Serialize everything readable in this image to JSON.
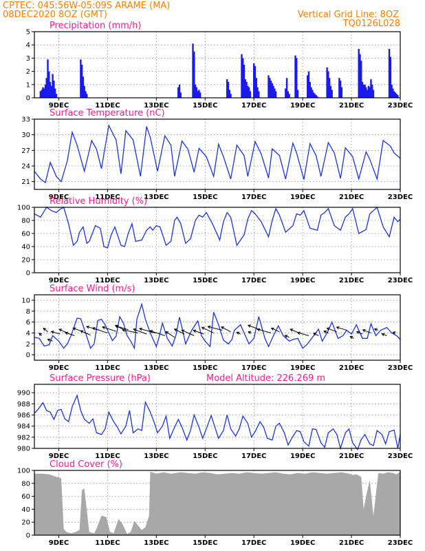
{
  "header": {
    "line1_left": "CPTEC:   045:56W-05:09S   ARAME (MA)",
    "line2_left": "08DEC2020 8OZ (GMT)",
    "line1_right": "Vertical Grid Line: 8OZ",
    "line2_right": "TQ0126L028"
  },
  "colors": {
    "header": "#ff7f00",
    "title": "#ff1a8c",
    "series": "#1a33dd",
    "bars": "#1a1aee",
    "cloud": "#a8a8a8"
  },
  "x_axis": {
    "range": [
      0,
      15
    ],
    "unit": "days since 08DEC2020 08Z",
    "tick_positions": [
      1,
      3,
      5,
      7,
      9,
      11,
      13,
      15
    ],
    "tick_labels": [
      "9DEC",
      "11DEC",
      "13DEC",
      "15DEC",
      "17DEC",
      "19DEC",
      "21DEC",
      "23DEC"
    ]
  },
  "chart_data": [
    {
      "id": "precip",
      "type": "bar",
      "title": "Precipitation (mm/h)",
      "ylim": [
        0,
        5
      ],
      "yticks": [
        0,
        1,
        2,
        3,
        4,
        5
      ],
      "x": [
        0.25,
        0.3,
        0.35,
        0.4,
        0.45,
        0.5,
        0.55,
        0.6,
        0.65,
        0.7,
        0.75,
        0.8,
        0.85,
        0.9,
        1.9,
        1.95,
        2.0,
        2.05,
        2.1,
        2.15,
        5.9,
        5.95,
        6.0,
        6.5,
        6.55,
        6.6,
        6.65,
        6.7,
        6.75,
        6.8,
        7.9,
        7.95,
        8.0,
        8.05,
        8.5,
        8.55,
        8.6,
        8.65,
        8.7,
        8.75,
        8.8,
        8.85,
        9.0,
        9.05,
        9.1,
        9.15,
        9.2,
        9.6,
        9.65,
        9.7,
        9.75,
        9.8,
        9.85,
        9.9,
        10.3,
        10.35,
        10.4,
        10.45,
        10.7,
        10.75,
        10.8,
        11.2,
        11.25,
        11.3,
        11.35,
        11.4,
        11.45,
        11.5,
        11.55,
        11.6,
        12.0,
        12.05,
        12.1,
        12.15,
        12.2,
        12.5,
        12.55,
        12.6,
        13.3,
        13.35,
        13.4,
        13.45,
        13.5,
        13.55,
        13.6,
        13.65,
        13.7,
        13.75,
        13.8,
        13.85,
        13.9,
        14.55,
        14.6,
        14.65,
        14.7,
        14.75,
        14.8,
        14.85,
        14.9
      ],
      "values": [
        0.5,
        0.6,
        0.8,
        0.7,
        1.0,
        1.5,
        2.9,
        2.0,
        1.2,
        0.9,
        1.8,
        1.3,
        0.7,
        0.3,
        2.9,
        2.5,
        1.6,
        0.9,
        0.5,
        0.3,
        0.8,
        1.0,
        0.4,
        4.1,
        3.5,
        1.0,
        0.8,
        0.5,
        0.6,
        0.4,
        1.4,
        1.2,
        0.6,
        0.3,
        3.3,
        3.0,
        2.5,
        1.4,
        1.2,
        0.9,
        0.8,
        0.5,
        2.6,
        2.4,
        1.5,
        0.8,
        0.5,
        1.7,
        1.5,
        1.3,
        1.1,
        0.9,
        0.7,
        0.5,
        0.7,
        1.5,
        0.5,
        0.3,
        3.2,
        3.0,
        0.6,
        1.7,
        2.0,
        1.2,
        0.8,
        0.6,
        0.4,
        0.3,
        0.2,
        0.1,
        2.3,
        2.0,
        1.5,
        0.9,
        0.6,
        1.5,
        1.3,
        0.8,
        3.7,
        3.3,
        2.8,
        1.2,
        1.0,
        1.0,
        0.8,
        0.6,
        0.9,
        0.8,
        1.4,
        1.0,
        0.6,
        3.7,
        3.1,
        1.0,
        0.7,
        0.5,
        0.4,
        0.3,
        0.2
      ]
    },
    {
      "id": "temp",
      "type": "line",
      "title": "Surface Temperature (nC)",
      "ylim": [
        19.5,
        33
      ],
      "yticks": [
        21,
        24,
        27,
        30,
        33
      ],
      "x": [
        0,
        0.25,
        0.45,
        0.65,
        0.9,
        1.1,
        1.35,
        1.55,
        1.75,
        2.05,
        2.35,
        2.55,
        2.75,
        3.05,
        3.35,
        3.55,
        3.75,
        4.05,
        4.35,
        4.6,
        4.75,
        5.05,
        5.35,
        5.6,
        5.75,
        6.05,
        6.3,
        6.55,
        6.75,
        7.05,
        7.35,
        7.55,
        7.75,
        8.05,
        8.3,
        8.6,
        8.75,
        9.05,
        9.3,
        9.6,
        9.75,
        10.05,
        10.3,
        10.6,
        10.75,
        11.05,
        11.3,
        11.55,
        11.75,
        12.05,
        12.3,
        12.55,
        12.75,
        13.05,
        13.3,
        13.6,
        13.75,
        14.05,
        14.3,
        14.6,
        14.75,
        15
      ],
      "values": [
        23.0,
        21.5,
        20.8,
        24.7,
        22.0,
        21.0,
        25.0,
        30.5,
        28.0,
        23.0,
        28.9,
        27.2,
        23.5,
        31.8,
        29.0,
        22.5,
        30.8,
        29.0,
        22.0,
        31.6,
        29.5,
        23.0,
        29.8,
        28.0,
        22.0,
        28.8,
        27.2,
        22.8,
        27.4,
        25.8,
        22.0,
        28.2,
        25.8,
        21.5,
        28.0,
        26.0,
        22.0,
        28.7,
        26.3,
        21.7,
        27.3,
        26.0,
        21.5,
        28.4,
        26.5,
        21.4,
        28.3,
        26.0,
        22.0,
        28.5,
        26.5,
        21.6,
        27.5,
        25.8,
        21.5,
        26.7,
        25.3,
        21.5,
        28.9,
        27.8,
        26.5,
        25.5
      ]
    },
    {
      "id": "rh",
      "type": "line",
      "title": "Relative Humidity (%)",
      "ylim": [
        0,
        100
      ],
      "yticks": [
        0,
        20,
        40,
        60,
        80,
        100
      ],
      "x": [
        0,
        0.25,
        0.5,
        0.7,
        0.9,
        1.05,
        1.2,
        1.4,
        1.6,
        1.75,
        1.85,
        2.0,
        2.15,
        2.25,
        2.5,
        2.7,
        2.85,
        3.0,
        3.15,
        3.3,
        3.55,
        3.7,
        3.85,
        4.0,
        4.15,
        4.4,
        4.6,
        4.75,
        4.85,
        5.0,
        5.15,
        5.4,
        5.6,
        5.75,
        5.85,
        6.0,
        6.2,
        6.4,
        6.6,
        6.75,
        6.9,
        7.05,
        7.3,
        7.6,
        7.75,
        7.9,
        8.05,
        8.3,
        8.6,
        8.75,
        8.9,
        9.05,
        9.3,
        9.6,
        9.75,
        9.9,
        10.05,
        10.3,
        10.6,
        10.75,
        10.9,
        11.05,
        11.3,
        11.6,
        11.75,
        11.9,
        12.05,
        12.3,
        12.55,
        12.75,
        12.9,
        13.05,
        13.3,
        13.6,
        13.75,
        13.9,
        14.05,
        14.3,
        14.55,
        14.75,
        14.9,
        15
      ],
      "values": [
        90,
        85,
        100,
        95,
        92,
        97,
        100,
        75,
        42,
        48,
        62,
        70,
        45,
        48,
        72,
        68,
        40,
        38,
        58,
        70,
        42,
        40,
        60,
        75,
        48,
        50,
        65,
        70,
        65,
        72,
        70,
        42,
        48,
        80,
        85,
        75,
        45,
        52,
        80,
        88,
        85,
        92,
        75,
        50,
        78,
        92,
        85,
        42,
        58,
        82,
        95,
        90,
        78,
        55,
        80,
        98,
        88,
        62,
        72,
        90,
        88,
        95,
        68,
        65,
        88,
        92,
        98,
        72,
        65,
        85,
        90,
        98,
        60,
        66,
        90,
        95,
        100,
        70,
        55,
        85,
        78,
        82
      ]
    },
    {
      "id": "wind",
      "type": "line",
      "title": "Surface Wind (m/s)",
      "ylim": [
        -1,
        11
      ],
      "yticks": [
        0,
        2,
        4,
        6,
        8,
        10
      ],
      "x": [
        0,
        0.2,
        0.4,
        0.6,
        0.75,
        1.0,
        1.2,
        1.35,
        1.5,
        1.75,
        1.9,
        2.1,
        2.3,
        2.45,
        2.6,
        2.75,
        2.9,
        3.0,
        3.2,
        3.35,
        3.5,
        3.65,
        3.8,
        3.95,
        4.1,
        4.2,
        4.4,
        4.55,
        4.75,
        4.9,
        5.0,
        5.1,
        5.25,
        5.45,
        5.65,
        5.8,
        5.95,
        6.05,
        6.2,
        6.45,
        6.7,
        6.85,
        7.0,
        7.2,
        7.35,
        7.55,
        7.75,
        7.95,
        8.1,
        8.2,
        8.45,
        8.65,
        8.8,
        9.0,
        9.2,
        9.45,
        9.6,
        9.8,
        10.0,
        10.2,
        10.45,
        10.6,
        10.8,
        11.0,
        11.2,
        11.45,
        11.65,
        11.8,
        12.0,
        12.2,
        12.45,
        12.65,
        12.8,
        13.0,
        13.2,
        13.45,
        13.65,
        13.8,
        14.0,
        14.2,
        14.45,
        14.65,
        14.85,
        15
      ],
      "values": [
        3.2,
        3.0,
        1.6,
        1.8,
        3.5,
        2.5,
        1.2,
        2.0,
        3.5,
        6.7,
        6.6,
        4.0,
        1.2,
        2.0,
        6.3,
        6.5,
        5.5,
        4.5,
        2.6,
        3.4,
        7.0,
        5.8,
        3.5,
        2.5,
        1.2,
        6.5,
        9.3,
        6.5,
        4.0,
        2.5,
        1.5,
        3.0,
        5.8,
        3.0,
        1.6,
        3.5,
        6.9,
        5.0,
        2.0,
        4.5,
        6.2,
        3.5,
        2.5,
        1.5,
        7.8,
        5.5,
        2.7,
        2.0,
        2.8,
        4.5,
        5.5,
        3.5,
        2.0,
        3.0,
        7.0,
        3.0,
        1.5,
        3.5,
        5.3,
        3.5,
        2.5,
        2.8,
        3.0,
        1.2,
        2.0,
        3.5,
        4.7,
        2.5,
        4.0,
        6.0,
        3.0,
        3.5,
        4.5,
        3.8,
        5.5,
        3.0,
        3.0,
        5.7,
        3.5,
        4.5,
        5.0,
        4.0,
        3.5,
        2.8
      ],
      "arrows_x": [
        0.3,
        0.55,
        0.75,
        1.05,
        1.35,
        1.65,
        2.0,
        2.3,
        2.65,
        3.0,
        3.35,
        3.7,
        3.85,
        4.25,
        4.6,
        4.95,
        5.35,
        5.75,
        6.15,
        6.55,
        6.95,
        7.35,
        7.7,
        8.05,
        8.45,
        8.9,
        9.3,
        9.7,
        10.05,
        10.45,
        10.85,
        11.25,
        11.65,
        12.05,
        12.4,
        12.8,
        13.1,
        13.45,
        13.8,
        14.1,
        14.45,
        14.8
      ],
      "arrows_y": [
        3.5,
        4.2,
        2.5,
        3.8,
        4.0,
        3.5,
        4.2,
        3.6,
        4.5,
        4.0,
        4.3,
        4.5,
        4.6,
        4.0,
        3.8,
        4.0,
        3.5,
        3.2,
        3.8,
        3.5,
        3.8,
        4.0,
        4.5,
        4.2,
        3.8,
        4.0,
        4.5,
        4.0,
        4.2,
        3.2,
        4.0,
        3.5,
        3.5,
        4.0,
        4.2,
        4.5,
        3.0,
        3.8,
        4.0,
        4.5,
        3.5,
        4.0
      ],
      "arrows_u": [
        -0.4,
        -0.7,
        -0.8,
        -1.4,
        -1.3,
        -1.5,
        -1.6,
        -1.6,
        -2.0,
        -2.4,
        -2.2,
        -1.5,
        -2.0,
        -2.5,
        -2.1,
        -2.5,
        -2.4,
        -1.4,
        -1.6,
        -2.0,
        -1.7,
        -1.9,
        -2.3,
        -1.5,
        -0.6,
        -0.5,
        -2.1,
        -2.2,
        -1.3,
        -0.7,
        -1.4,
        -1.8,
        -0.8,
        -0.7,
        -1.6,
        -1.6,
        -0.6,
        -0.9,
        -1.3,
        -0.6,
        -0.8,
        -0.4
      ],
      "arrows_v": [
        0.4,
        0.6,
        0.3,
        0.4,
        0.6,
        0.5,
        0.6,
        0.7,
        0.6,
        0.8,
        0.7,
        0.8,
        0.6,
        0.5,
        0.8,
        0.7,
        0.8,
        0.9,
        0.8,
        0.9,
        0.6,
        0.9,
        0.6,
        0.8,
        0.3,
        0.2,
        0.8,
        0.6,
        0.6,
        0.3,
        0.6,
        0.5,
        0.4,
        0.3,
        0.6,
        0.5,
        0.3,
        0.4,
        0.5,
        0.2,
        0.3,
        0.1
      ]
    },
    {
      "id": "press",
      "type": "line",
      "title": "Surface Pressure (hPa)",
      "title_extra": "Model Altitude: 226.269 m",
      "ylim": [
        980,
        991.5
      ],
      "yticks": [
        980,
        982,
        984,
        986,
        988,
        990
      ],
      "x": [
        0,
        0.15,
        0.35,
        0.5,
        0.65,
        0.8,
        0.95,
        1.1,
        1.25,
        1.4,
        1.55,
        1.75,
        1.9,
        2.05,
        2.25,
        2.4,
        2.55,
        2.75,
        2.9,
        3.05,
        3.25,
        3.4,
        3.55,
        3.75,
        3.9,
        4.05,
        4.25,
        4.4,
        4.55,
        4.75,
        4.9,
        5.05,
        5.25,
        5.4,
        5.55,
        5.75,
        5.9,
        6.05,
        6.25,
        6.4,
        6.55,
        6.75,
        6.9,
        7.05,
        7.25,
        7.4,
        7.55,
        7.75,
        7.9,
        8.05,
        8.25,
        8.4,
        8.55,
        8.75,
        8.9,
        9.05,
        9.25,
        9.4,
        9.55,
        9.75,
        9.9,
        10.05,
        10.25,
        10.4,
        10.55,
        10.75,
        10.9,
        11.05,
        11.25,
        11.4,
        11.55,
        11.75,
        11.9,
        12.05,
        12.25,
        12.4,
        12.55,
        12.75,
        12.9,
        13.05,
        13.25,
        13.4,
        13.55,
        13.75,
        13.9,
        14.05,
        14.25,
        14.4,
        14.55,
        14.75,
        14.9,
        15
      ],
      "values": [
        986.3,
        987.0,
        988.2,
        986.8,
        986.5,
        985.2,
        986.8,
        987.0,
        985.3,
        984.8,
        987.5,
        989.5,
        986.8,
        985.2,
        984.5,
        985.3,
        982.8,
        982.5,
        983.5,
        986.5,
        984.8,
        983.8,
        982.6,
        984.0,
        986.8,
        982.8,
        983.5,
        983.2,
        988.3,
        986.5,
        984.8,
        982.8,
        984.0,
        985.8,
        981.8,
        983.8,
        985.2,
        983.8,
        981.5,
        983.2,
        986.0,
        983.8,
        981.8,
        983.5,
        985.9,
        983.8,
        981.8,
        983.2,
        986.0,
        983.5,
        982.2,
        983.5,
        985.8,
        984.5,
        982.0,
        983.0,
        984.8,
        983.8,
        981.8,
        981.5,
        984.0,
        984.5,
        982.8,
        980.6,
        981.8,
        983.2,
        983.0,
        981.2,
        980.4,
        983.5,
        983.4,
        981.0,
        980.2,
        982.8,
        983.5,
        982.5,
        980.0,
        982.8,
        983.5,
        981.0,
        979.8,
        981.6,
        982.5,
        980.8,
        980.5,
        983.2,
        982.5,
        980.8,
        983.0,
        983.3,
        980.0,
        982.5
      ]
    },
    {
      "id": "cloud",
      "type": "area",
      "title": "Cloud Cover (%)",
      "ylim": [
        0,
        100
      ],
      "yticks": [
        0,
        20,
        40,
        60,
        80,
        100
      ],
      "x": [
        0,
        0.3,
        0.6,
        0.9,
        1.1,
        1.2,
        1.3,
        1.5,
        1.7,
        1.85,
        1.95,
        2.05,
        2.25,
        2.45,
        2.55,
        2.75,
        2.95,
        3.1,
        3.25,
        3.45,
        3.6,
        3.8,
        3.95,
        4.1,
        4.25,
        4.4,
        4.55,
        4.7,
        4.75,
        5.0,
        5.3,
        5.6,
        5.8,
        6.0,
        6.3,
        6.6,
        6.9,
        7.2,
        7.5,
        7.8,
        8.1,
        8.4,
        8.7,
        9.0,
        9.3,
        9.6,
        9.9,
        10.2,
        10.5,
        10.8,
        11.1,
        11.4,
        11.7,
        12.0,
        12.3,
        12.6,
        12.9,
        13.05,
        13.2,
        13.4,
        13.5,
        13.6,
        13.75,
        13.9,
        14.1,
        14.3,
        14.5,
        14.7,
        14.85,
        15
      ],
      "values": [
        95,
        95,
        94,
        90,
        88,
        10,
        5,
        3,
        5,
        8,
        70,
        72,
        5,
        3,
        10,
        30,
        28,
        5,
        3,
        25,
        18,
        2,
        5,
        22,
        15,
        8,
        12,
        30,
        98,
        95,
        97,
        95,
        96,
        97,
        96,
        95,
        97,
        96,
        94,
        95,
        96,
        95,
        97,
        96,
        95,
        96,
        97,
        95,
        94,
        96,
        95,
        97,
        96,
        95,
        96,
        97,
        95,
        93,
        94,
        90,
        40,
        60,
        85,
        30,
        96,
        95,
        97,
        96,
        94,
        98
      ]
    }
  ]
}
